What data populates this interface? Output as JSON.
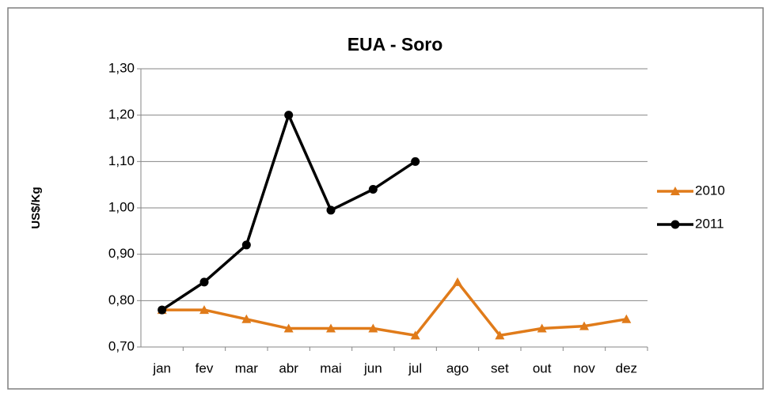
{
  "chart_data": {
    "type": "line",
    "title": "EUA - Soro",
    "y_label": "US$/Kg",
    "categories": [
      "jan",
      "fev",
      "mar",
      "abr",
      "mai",
      "jun",
      "jul",
      "ago",
      "set",
      "out",
      "nov",
      "dez"
    ],
    "series": [
      {
        "name": "2010",
        "color": "#e07b1a",
        "marker": "triangle",
        "values": [
          0.78,
          0.78,
          0.76,
          0.74,
          0.74,
          0.74,
          0.725,
          0.84,
          0.725,
          0.74,
          0.745,
          0.76
        ]
      },
      {
        "name": "2011",
        "color": "#000000",
        "marker": "circle",
        "values": [
          0.78,
          0.84,
          0.92,
          1.2,
          0.995,
          1.04,
          1.1,
          null,
          null,
          null,
          null,
          null
        ]
      }
    ],
    "ylim": [
      0.7,
      1.3
    ],
    "yticks": [
      {
        "value": 0.7,
        "label": "0,70"
      },
      {
        "value": 0.8,
        "label": "0,80"
      },
      {
        "value": 0.9,
        "label": "0,90"
      },
      {
        "value": 1.0,
        "label": "1,00"
      },
      {
        "value": 1.1,
        "label": "1,10"
      },
      {
        "value": 1.2,
        "label": "1,20"
      },
      {
        "value": 1.3,
        "label": "1,30"
      }
    ],
    "grid": true,
    "legend": "right"
  }
}
